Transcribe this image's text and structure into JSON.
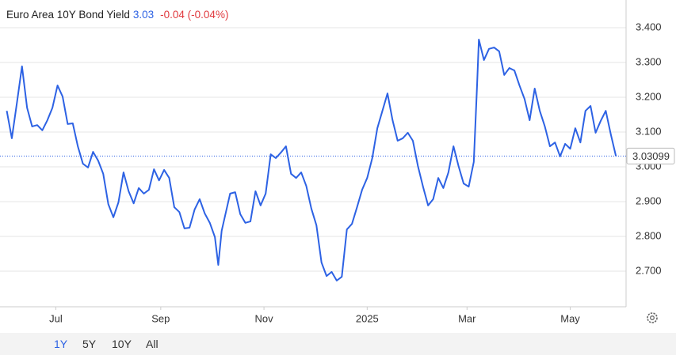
{
  "chart_data": {
    "type": "line",
    "title": "Euro Area 10Y Bond Yield",
    "price": 3.03,
    "change": "-0.04 (-0.04%)",
    "x": [
      1,
      4,
      7,
      10,
      13,
      16,
      19,
      22,
      25,
      28,
      31,
      34,
      37,
      40,
      43,
      46,
      49,
      52,
      55,
      58,
      61,
      64,
      67,
      70,
      73,
      76,
      79,
      82,
      85,
      88,
      91,
      94,
      97,
      100,
      103,
      106,
      109,
      112,
      115,
      118,
      121,
      124,
      126,
      128,
      130,
      133,
      136,
      139,
      142,
      145,
      148,
      151,
      154,
      157,
      160,
      163,
      166,
      169,
      172,
      175,
      178,
      181,
      184,
      187,
      190,
      193,
      196,
      199,
      202,
      205,
      208,
      211,
      214,
      217,
      220,
      223,
      226,
      229,
      232,
      235,
      238,
      241,
      244,
      247,
      250,
      253,
      256,
      259,
      262,
      265,
      268,
      271,
      274,
      277,
      279,
      280,
      283,
      286,
      289,
      292,
      295,
      298,
      301,
      304,
      307,
      310,
      313,
      316,
      319,
      322,
      325,
      328,
      331,
      334,
      337,
      340,
      343,
      346,
      349,
      352,
      355,
      358,
      361
    ],
    "values": [
      3.161,
      3.082,
      3.184,
      3.289,
      3.17,
      3.116,
      3.12,
      3.105,
      3.134,
      3.17,
      3.234,
      3.202,
      3.123,
      3.125,
      3.059,
      3.009,
      2.998,
      3.043,
      3.018,
      2.98,
      2.893,
      2.855,
      2.898,
      2.984,
      2.93,
      2.895,
      2.939,
      2.923,
      2.934,
      2.993,
      2.961,
      2.991,
      2.968,
      2.884,
      2.87,
      2.823,
      2.825,
      2.877,
      2.907,
      2.866,
      2.839,
      2.798,
      2.718,
      2.816,
      2.859,
      2.923,
      2.927,
      2.864,
      2.839,
      2.843,
      2.93,
      2.889,
      2.923,
      3.036,
      3.025,
      3.041,
      3.059,
      2.98,
      2.968,
      2.984,
      2.945,
      2.88,
      2.832,
      2.725,
      2.686,
      2.698,
      2.673,
      2.684,
      2.82,
      2.836,
      2.884,
      2.934,
      2.968,
      3.025,
      3.111,
      3.161,
      3.211,
      3.134,
      3.075,
      3.082,
      3.098,
      3.075,
      3.002,
      2.943,
      2.889,
      2.907,
      2.968,
      2.939,
      2.984,
      3.059,
      3.002,
      2.952,
      2.943,
      3.014,
      3.241,
      3.366,
      3.307,
      3.339,
      3.343,
      3.332,
      3.264,
      3.284,
      3.277,
      3.234,
      3.195,
      3.134,
      3.225,
      3.161,
      3.116,
      3.059,
      3.07,
      3.03,
      3.066,
      3.052,
      3.111,
      3.07,
      3.161,
      3.175,
      3.098,
      3.132,
      3.161,
      3.093,
      3.03099
    ],
    "color": "#2d62e4",
    "xlim": [
      -3,
      367
    ],
    "xticks": [
      {
        "value": 30,
        "label": "Jul"
      },
      {
        "value": 92,
        "label": "Sep"
      },
      {
        "value": 153,
        "label": "Nov"
      },
      {
        "value": 214,
        "label": "2025"
      },
      {
        "value": 273,
        "label": "Mar"
      },
      {
        "value": 334,
        "label": "May"
      }
    ],
    "ylim": [
      2.6,
      3.45
    ],
    "yticks": [
      {
        "value": 2.7,
        "label": "2.700"
      },
      {
        "value": 2.8,
        "label": "2.800"
      },
      {
        "value": 2.9,
        "label": "2.900"
      },
      {
        "value": 3.0,
        "label": "3.000"
      },
      {
        "value": 3.1,
        "label": "3.100"
      },
      {
        "value": 3.2,
        "label": "3.200"
      },
      {
        "value": 3.3,
        "label": "3.300"
      },
      {
        "value": 3.4,
        "label": "3.400"
      }
    ],
    "grid": true
  },
  "ranges": [
    "1Y",
    "5Y",
    "10Y",
    "All"
  ]
}
